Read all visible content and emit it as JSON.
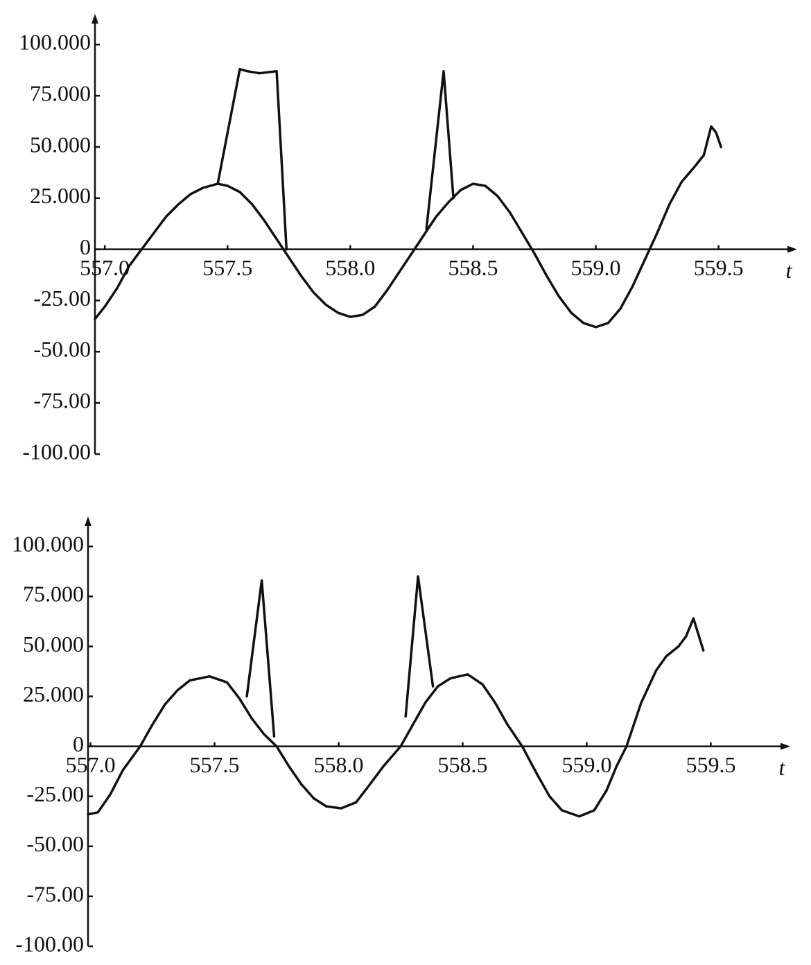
{
  "chart_data": [
    {
      "type": "line",
      "x_label": "t",
      "xlim": [
        556.96,
        559.82
      ],
      "ylim": [
        -100,
        115
      ],
      "xticks": [
        {
          "value": 557,
          "label": "557.0"
        },
        {
          "value": 557.5,
          "label": "557.5"
        },
        {
          "value": 558,
          "label": "558.0"
        },
        {
          "value": 558.5,
          "label": "558.5"
        },
        {
          "value": 559,
          "label": "559.0"
        },
        {
          "value": 559.5,
          "label": "559.5"
        }
      ],
      "yticks": [
        {
          "value": 100,
          "label": "100.000"
        },
        {
          "value": 75,
          "label": "75.000"
        },
        {
          "value": 50,
          "label": "50.000"
        },
        {
          "value": 25,
          "label": "25.000"
        },
        0,
        {
          "value": -25,
          "label": "-25.00"
        },
        {
          "value": -50,
          "label": "-50.00"
        },
        {
          "value": -75,
          "label": "-75.00"
        },
        {
          "value": -100,
          "label": "-100.00"
        }
      ],
      "series": [
        {
          "color": "#111111",
          "x": [
            556.96,
            557.0,
            557.05,
            557.1,
            557.15,
            557.2,
            557.25,
            557.3,
            557.35,
            557.4,
            557.46,
            557.5,
            557.55,
            557.6,
            557.65,
            557.7,
            557.75,
            557.8,
            557.85,
            557.9,
            557.95,
            558.0,
            558.05,
            558.1,
            558.15,
            558.2,
            558.25,
            558.3,
            558.35,
            558.4,
            558.45,
            558.5,
            558.55,
            558.6,
            558.65,
            558.7,
            558.75,
            558.8,
            558.85,
            558.9,
            558.95,
            559.0,
            559.05,
            559.1,
            559.15,
            559.2,
            559.25,
            559.3,
            559.35,
            559.4,
            559.44,
            559.47,
            559.49,
            559.51
          ],
          "values": [
            -34,
            -28,
            -19,
            -8,
            0,
            8,
            16,
            22,
            27,
            30,
            32,
            31,
            28,
            22,
            14,
            5,
            -4,
            -13,
            -21,
            -27,
            -31,
            -33,
            -32,
            -28,
            -20,
            -11,
            -2,
            7,
            16,
            23,
            29,
            32,
            31,
            26,
            18,
            8,
            -2,
            -13,
            -23,
            -31,
            -36,
            -38,
            -36,
            -29,
            -18,
            -5,
            8,
            22,
            33,
            40,
            46,
            60,
            57,
            50
          ]
        },
        {
          "color": "#111111",
          "x": [
            557.46,
            557.55,
            557.58,
            557.63,
            557.7,
            557.74
          ],
          "values": [
            32,
            88,
            87,
            86,
            87,
            0
          ]
        },
        {
          "color": "#111111",
          "x": [
            558.31,
            558.38,
            558.42
          ],
          "values": [
            10,
            87,
            25
          ]
        }
      ]
    },
    {
      "type": "line",
      "x_label": "t",
      "xlim": [
        556.99,
        559.82
      ],
      "ylim": [
        -100,
        115
      ],
      "xticks": [
        {
          "value": 557,
          "label": "557.0"
        },
        {
          "value": 557.5,
          "label": "557.5"
        },
        {
          "value": 558,
          "label": "558.0"
        },
        {
          "value": 558.5,
          "label": "558.5"
        },
        {
          "value": 559,
          "label": "559.0"
        },
        {
          "value": 559.5,
          "label": "559.5"
        }
      ],
      "yticks": [
        {
          "value": 100,
          "label": "100.000"
        },
        {
          "value": 75,
          "label": "75.000"
        },
        {
          "value": 50,
          "label": "50.000"
        },
        {
          "value": 25,
          "label": "25.000"
        },
        0,
        {
          "value": -25,
          "label": "-25.00"
        },
        {
          "value": -50,
          "label": "-50.00"
        },
        {
          "value": -75,
          "label": "-75.00"
        },
        {
          "value": -100,
          "label": "-100.00"
        }
      ],
      "series": [
        {
          "color": "#111111",
          "x": [
            556.99,
            557.03,
            557.08,
            557.13,
            557.2,
            557.25,
            557.3,
            557.35,
            557.4,
            557.48,
            557.55,
            557.6,
            557.65,
            557.7,
            557.75,
            557.8,
            557.85,
            557.9,
            557.95,
            558.01,
            558.07,
            558.12,
            558.18,
            558.25,
            558.3,
            558.35,
            558.4,
            558.45,
            558.52,
            558.58,
            558.63,
            558.68,
            558.74,
            558.8,
            558.85,
            558.9,
            558.97,
            559.03,
            559.08,
            559.12,
            559.16,
            559.22,
            559.28,
            559.32,
            559.37,
            559.4,
            559.43,
            559.47
          ],
          "values": [
            -34,
            -33,
            -24,
            -12,
            0,
            11,
            21,
            28,
            33,
            35,
            32,
            24,
            14,
            6,
            0,
            -10,
            -19,
            -26,
            -30,
            -31,
            -28,
            -20,
            -10,
            0,
            11,
            22,
            30,
            34,
            36,
            31,
            22,
            11,
            0,
            -14,
            -25,
            -32,
            -35,
            -32,
            -22,
            -10,
            0,
            22,
            38,
            45,
            50,
            55,
            64,
            48
          ]
        },
        {
          "color": "#111111",
          "x": [
            557.63,
            557.69,
            557.74
          ],
          "values": [
            25,
            83,
            5
          ]
        },
        {
          "color": "#111111",
          "x": [
            558.27,
            558.32,
            558.38
          ],
          "values": [
            15,
            85,
            30
          ]
        }
      ]
    }
  ]
}
